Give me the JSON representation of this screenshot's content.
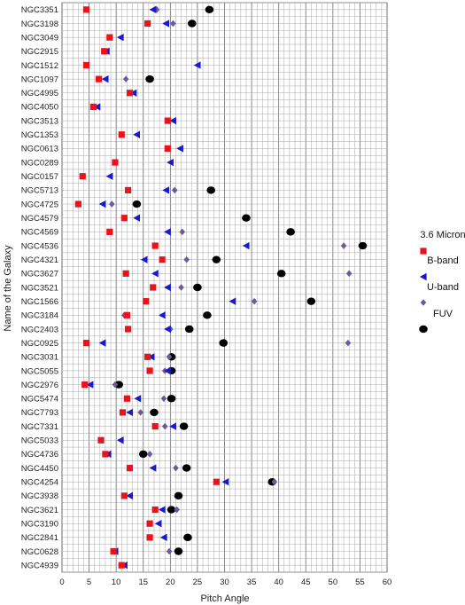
{
  "chart_data": {
    "type": "scatter",
    "title": "",
    "xlabel": "Pitch Angle",
    "ylabel": "Name of the Galaxy",
    "xlim": [
      0,
      60
    ],
    "x_ticks": [
      0,
      5,
      10,
      15,
      20,
      25,
      30,
      35,
      40,
      45,
      50,
      55,
      60
    ],
    "grid": true,
    "legend_position": "right",
    "categories": [
      "NGC3351",
      "NGC3198",
      "NGC3049",
      "NGC2915",
      "NGC1512",
      "NGC1097",
      "NGC4995",
      "NGC4050",
      "NGC3513",
      "NGC1353",
      "NGC0613",
      "NGC0289",
      "NGC0157",
      "NGC5713",
      "NGC4725",
      "NGC4579",
      "NGC4569",
      "NGC4536",
      "NGC4321",
      "NGC3627",
      "NGC3521",
      "NGC1566",
      "NGC3184",
      "NGC2403",
      "NGC0925",
      "NGC3031",
      "NGC5055",
      "NGC2976",
      "NGC5474",
      "NGC7793",
      "NGC7331",
      "NGC5033",
      "NGC4736",
      "NGC4450",
      "NGC4254",
      "NGC3938",
      "NGC3621",
      "NGC3190",
      "NGC2841",
      "NGC0628",
      "NGC4939"
    ],
    "series": [
      {
        "name": "3.6 Micron",
        "color": "#e8141b",
        "marker": "square",
        "values": [
          4.5,
          15.8,
          8.8,
          7.8,
          4.5,
          6.8,
          12.5,
          5.8,
          19.5,
          11.0,
          19.5,
          9.8,
          3.8,
          12.2,
          3.0,
          11.5,
          8.8,
          17.2,
          18.5,
          11.8,
          16.8,
          15.5,
          12.0,
          12.2,
          4.5,
          15.8,
          16.2,
          4.2,
          12.0,
          11.2,
          17.2,
          7.2,
          8.0,
          12.5,
          28.5,
          11.5,
          17.2,
          16.2,
          16.2,
          9.5,
          11.0
        ]
      },
      {
        "name": "B-band",
        "color": "#1a1acd",
        "marker": "triangle-left",
        "values": [
          16.8,
          19.2,
          10.8,
          8.2,
          25.0,
          8.0,
          13.2,
          6.5,
          20.5,
          13.8,
          21.8,
          20.0,
          8.8,
          19.2,
          7.5,
          13.8,
          19.5,
          34.0,
          15.2,
          17.2,
          19.5,
          31.5,
          18.5,
          19.5,
          7.5,
          16.5,
          19.5,
          5.2,
          14.0,
          12.5,
          20.5,
          10.8,
          8.5,
          16.8,
          30.2,
          12.5,
          18.5,
          17.8,
          18.8,
          9.8,
          11.5
        ]
      },
      {
        "name": "U-band",
        "color": "#6e5a96",
        "marker": "diamond",
        "values": [
          17.5,
          20.5,
          null,
          null,
          null,
          11.8,
          null,
          null,
          null,
          null,
          null,
          null,
          null,
          20.8,
          9.2,
          null,
          22.2,
          52.0,
          23.0,
          53.0,
          22.0,
          35.5,
          11.5,
          20.0,
          52.8,
          19.8,
          19.0,
          9.8,
          18.8,
          14.5,
          19.0,
          null,
          16.2,
          21.0,
          39.2,
          null,
          21.2,
          null,
          null,
          19.8,
          null
        ]
      },
      {
        "name": "FUV",
        "color": "#000000",
        "marker": "circle",
        "values": [
          27.2,
          24.0,
          null,
          null,
          null,
          16.2,
          null,
          null,
          null,
          null,
          null,
          null,
          null,
          27.5,
          13.8,
          34.0,
          42.2,
          55.5,
          28.5,
          40.5,
          25.0,
          46.0,
          26.8,
          23.5,
          29.8,
          20.2,
          20.2,
          10.5,
          20.2,
          17.0,
          22.5,
          null,
          15.0,
          23.0,
          38.8,
          21.5,
          20.2,
          null,
          23.2,
          21.5,
          null
        ]
      }
    ]
  },
  "legend": [
    {
      "label": "3.6 Micron",
      "marker": "square",
      "color": "#e8141b"
    },
    {
      "label": "B-band",
      "marker": "triangle-left",
      "color": "#1a1acd"
    },
    {
      "label": "U-band",
      "marker": "diamond",
      "color": "#6e5a96"
    },
    {
      "label": "FUV",
      "marker": "circle",
      "color": "#000000"
    }
  ]
}
